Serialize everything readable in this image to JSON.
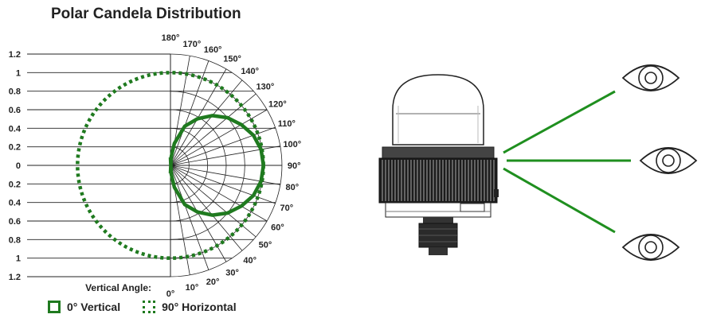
{
  "title": "Polar Candela Distribution",
  "colors": {
    "curve": "#1f7a1f",
    "grid": "#222222"
  },
  "chart_data": {
    "type": "polar",
    "title": "Polar Candela Distribution",
    "radial_ticks": [
      "1.2",
      "1",
      "0.8",
      "0.6",
      "0.4",
      "0.2",
      "0",
      "0.2",
      "0.4",
      "0.6",
      "0.8",
      "1",
      "1.2"
    ],
    "angle_ticks": [
      "180°",
      "170°",
      "160°",
      "150°",
      "140°",
      "130°",
      "120°",
      "110°",
      "100°",
      "90°",
      "80°",
      "70°",
      "60°",
      "50°",
      "40°",
      "30°",
      "20°",
      "10°",
      "0°"
    ],
    "vertical_angle_label": "Vertical Angle:",
    "series": [
      {
        "name": "0° Vertical",
        "style": "solid",
        "angles": [
          5,
          10,
          20,
          30,
          40,
          50,
          60,
          70,
          80,
          90,
          100,
          110,
          120,
          130,
          140,
          150,
          160,
          170,
          175
        ],
        "values": [
          0.09,
          0.24,
          0.45,
          0.58,
          0.7,
          0.8,
          0.88,
          0.95,
          0.99,
          1.0,
          0.99,
          0.95,
          0.88,
          0.8,
          0.7,
          0.58,
          0.45,
          0.24,
          0.09
        ]
      },
      {
        "name": "90° Horizontal",
        "style": "dotted",
        "angles": [
          0,
          15,
          30,
          45,
          60,
          75,
          90,
          105,
          120,
          135,
          150,
          165,
          180
        ],
        "values": [
          1,
          1,
          1,
          1,
          1,
          1,
          1,
          1,
          1,
          1,
          1,
          1,
          1
        ]
      }
    ]
  },
  "legend": {
    "vertical": "0° Vertical",
    "horizontal": "90° Horizontal"
  }
}
